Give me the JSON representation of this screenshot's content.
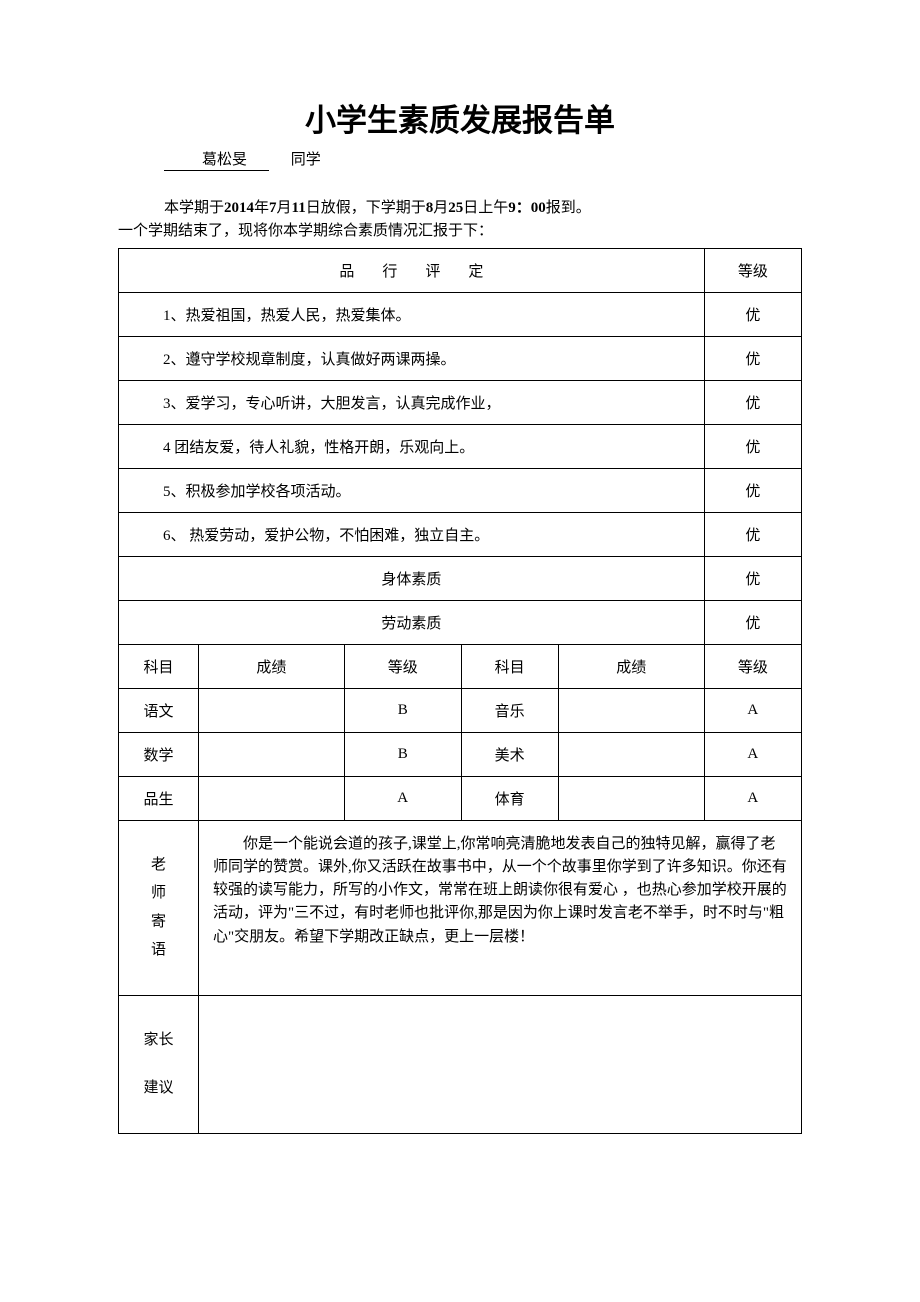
{
  "title": "小学生素质发展报告单",
  "student": {
    "name": "葛松旻",
    "suffix": "同学"
  },
  "intro": {
    "p1_a": "本学期于",
    "p1_b": "2014",
    "p1_c": "年",
    "p1_d": "7",
    "p1_e": "月",
    "p1_f": "11",
    "p1_g": "日放假，下学期于",
    "p1_h": "8",
    "p1_i": "月",
    "p1_j": "25",
    "p1_k": "日上午",
    "p1_l": "9：00",
    "p1_m": "报到。",
    "p2": "一个学期结束了，现将你本学期综合素质情况汇报于下："
  },
  "table": {
    "conduct_header": "品行评定",
    "grade_header": "等级",
    "conduct": [
      {
        "text": "1、热爱祖国，热爱人民，热爱集体。",
        "grade": "优"
      },
      {
        "text": "2、遵守学校规章制度，认真做好两课两操。",
        "grade": "优"
      },
      {
        "text": "3、爱学习，专心听讲，大胆发言，认真完成作业，",
        "grade": "优"
      },
      {
        "text": "4 团结友爱，待人礼貌，性格开朗，乐观向上。",
        "grade": "优"
      },
      {
        "text": "5、积极参加学校各项活动。",
        "grade": "优"
      },
      {
        "text": "6、 热爱劳动，爱护公物，不怕困难，独立自主。",
        "grade": "优"
      }
    ],
    "quality": [
      {
        "label": "身体素质",
        "grade": "优"
      },
      {
        "label": "劳动素质",
        "grade": "优"
      }
    ],
    "subj_headers": {
      "subj": "科目",
      "score": "成绩",
      "grade": "等级"
    },
    "subjects": [
      {
        "name1": "语文",
        "score1": "",
        "grade1": "B",
        "name2": "音乐",
        "score2": "",
        "grade2": "A"
      },
      {
        "name1": "数学",
        "score1": "",
        "grade1": "B",
        "name2": "美术",
        "score2": "",
        "grade2": "A"
      },
      {
        "name1": "品生",
        "score1": "",
        "grade1": "A",
        "name2": "体育",
        "score2": "",
        "grade2": "A"
      }
    ],
    "teacher_label": "老师寄语",
    "teacher_text": "你是一个能说会道的孩子,课堂上,你常响亮清脆地发表自己的独特见解，赢得了老师同学的赞赏。课外,你又活跃在故事书中，从一个个故事里你学到了许多知识。你还有较强的读写能力，所写的小作文，常常在班上朗读你很有爱心 ，也热心参加学校开展的活动，评为\"三不过，有时老师也批评你,那是因为你上课时发言老不举手，时不时与\"粗心\"交朋友。希望下学期改正缺点，更上一层楼！",
    "parent_label_1": "家长",
    "parent_label_2": "建议",
    "parent_text": ""
  }
}
